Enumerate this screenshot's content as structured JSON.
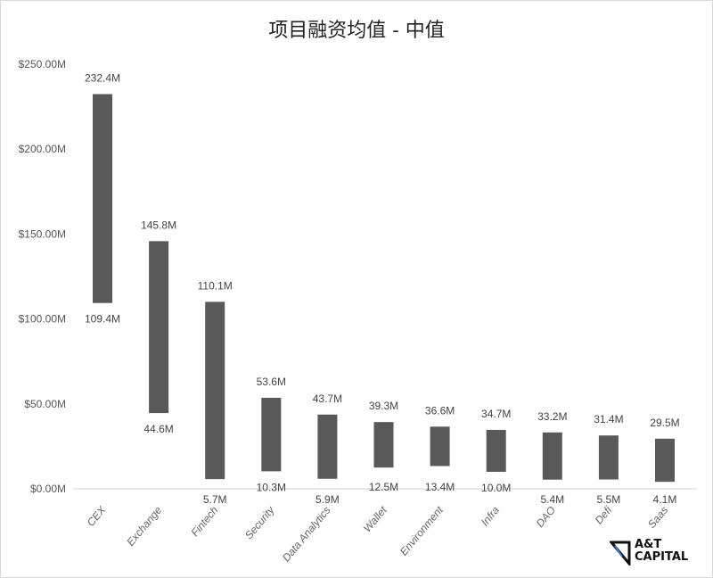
{
  "chart_data": {
    "type": "bar",
    "subtype": "floating-range",
    "title": "项目融资均值 - 中值",
    "xlabel": "",
    "ylabel": "",
    "ylim": [
      0,
      250
    ],
    "y_ticks": [
      "$0.00M",
      "$50.00M",
      "$100.00M",
      "$150.00M",
      "$200.00M",
      "$250.00M"
    ],
    "y_tick_values": [
      0,
      50,
      100,
      150,
      200,
      250
    ],
    "grid": false,
    "categories": [
      "CEX",
      "Exchange",
      "Fintech",
      "Security",
      "Data Analytics",
      "Wallet",
      "Environment",
      "Infra",
      "DAO",
      "Defi",
      "Saas"
    ],
    "high": [
      232.4,
      145.8,
      110.1,
      53.6,
      43.7,
      39.3,
      36.6,
      34.7,
      33.2,
      31.4,
      29.5
    ],
    "low": [
      109.4,
      44.6,
      5.7,
      10.3,
      5.9,
      12.5,
      13.4,
      10.0,
      5.4,
      5.5,
      4.1
    ],
    "high_labels": [
      "232.4M",
      "145.8M",
      "110.1M",
      "53.6M",
      "43.7M",
      "39.3M",
      "36.6M",
      "34.7M",
      "33.2M",
      "31.4M",
      "29.5M"
    ],
    "low_labels": [
      "109.4M",
      "44.6M",
      "5.7M",
      "10.3M",
      "5.9M",
      "12.5M",
      "13.4M",
      "10.0M",
      "5.4M",
      "5.5M",
      "4.1M"
    ],
    "bar_color": "#595959"
  },
  "logo": {
    "line1": "A&T",
    "line2": "CAPITAL"
  }
}
